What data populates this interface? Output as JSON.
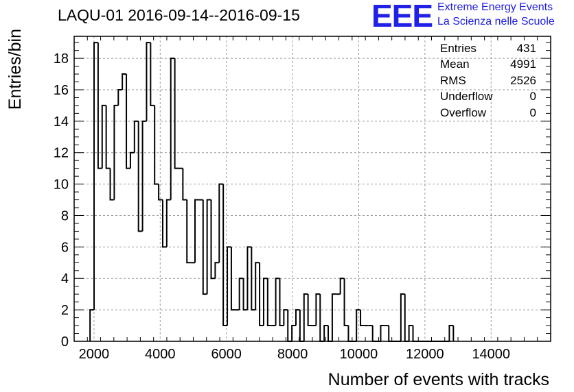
{
  "title": "LAQU-01 2016-09-14--2016-09-15",
  "logo": {
    "mark": "EEE",
    "line1": "Extreme Energy Events",
    "line2": "La Scienza nelle Scuole",
    "color": "#1f1fe6"
  },
  "stats": [
    {
      "label": "Entries",
      "value": "431"
    },
    {
      "label": "Mean",
      "value": "4991"
    },
    {
      "label": "RMS",
      "value": "2526"
    },
    {
      "label": "Underflow",
      "value": "0"
    },
    {
      "label": "Overflow",
      "value": "0"
    }
  ],
  "chart_data": {
    "type": "histogram",
    "xlabel": "Number of events with tracks",
    "ylabel": "Entries/bin",
    "xlim": [
      1400,
      15800
    ],
    "ylim": [
      0,
      19.4
    ],
    "x_ticks": [
      2000,
      4000,
      6000,
      8000,
      10000,
      12000,
      14000
    ],
    "y_ticks": [
      0,
      2,
      4,
      6,
      8,
      10,
      12,
      14,
      16,
      18
    ],
    "grid": true,
    "bin_start": 1880,
    "bin_width": 122,
    "values": [
      2,
      19,
      11,
      15,
      11,
      9,
      15,
      16,
      17,
      11,
      12,
      14,
      7,
      14,
      19,
      15,
      10,
      9,
      6,
      9,
      18,
      11,
      11,
      9,
      5,
      5,
      9,
      9,
      3,
      9,
      4,
      5,
      10,
      1,
      6,
      2,
      2,
      4,
      2,
      6,
      2,
      5,
      1,
      4,
      1,
      1,
      4,
      1,
      2,
      0,
      1,
      2,
      0,
      3,
      1,
      1,
      3,
      0,
      1,
      0,
      3,
      3,
      4,
      1,
      0,
      0,
      2,
      1,
      1,
      1,
      0,
      0,
      1,
      1,
      0,
      0,
      0,
      3,
      0,
      1,
      0,
      0,
      0,
      0,
      0,
      0,
      0,
      0,
      0,
      1
    ]
  }
}
